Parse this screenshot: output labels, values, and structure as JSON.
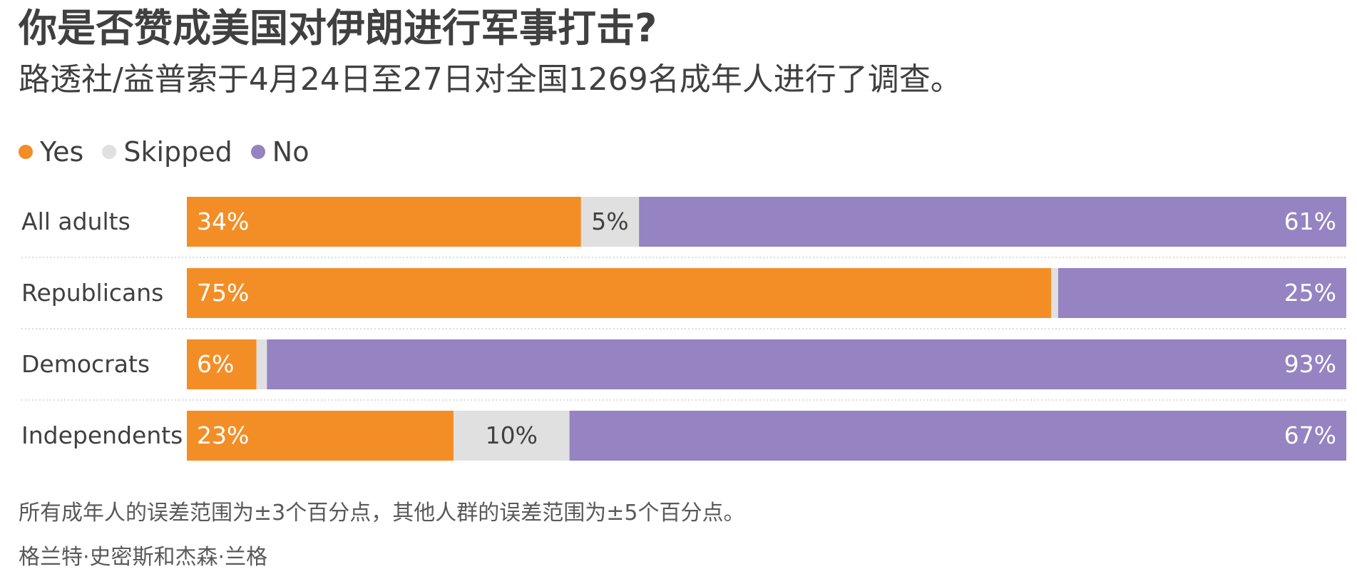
{
  "title": "你是否赞成美国对伊朗进行军事打击?",
  "subtitle": "路透社/益普索于4月24日至27日对全国1269名成年人进行了调查。",
  "colors": {
    "yes": "#F38E27",
    "skipped": "#E0E0E0",
    "no": "#9583C2",
    "label_on_dark": "#ffffff",
    "label_on_light": "#404040",
    "divider": "#d0d0d0"
  },
  "legend": [
    {
      "label": "Yes",
      "color": "#F38E27"
    },
    {
      "label": "Skipped",
      "color": "#E0E0E0"
    },
    {
      "label": "No",
      "color": "#9583C2"
    }
  ],
  "chart_data": {
    "type": "bar",
    "orientation": "horizontal",
    "stacked": true,
    "percent": true,
    "categories": [
      "All adults",
      "Republicans",
      "Democrats",
      "Independents"
    ],
    "series": [
      {
        "name": "Yes",
        "values": [
          34,
          75,
          6,
          23
        ],
        "labels": [
          "34%",
          "75%",
          "6%",
          "23%"
        ]
      },
      {
        "name": "Skipped",
        "values": [
          5,
          0.6,
          0.9,
          10
        ],
        "labels": [
          "5%",
          "",
          "",
          "10%"
        ]
      },
      {
        "name": "No",
        "values": [
          61,
          25,
          93,
          67
        ],
        "labels": [
          "61%",
          "25%",
          "93%",
          "67%"
        ]
      }
    ],
    "xlim": [
      0,
      100
    ],
    "legend_position": "top-left",
    "grid": false
  },
  "footnote": "所有成年人的误差范围为±3个百分点，其他人群的误差范围为±5个百分点。",
  "credit": "格兰特·史密斯和杰森·兰格"
}
